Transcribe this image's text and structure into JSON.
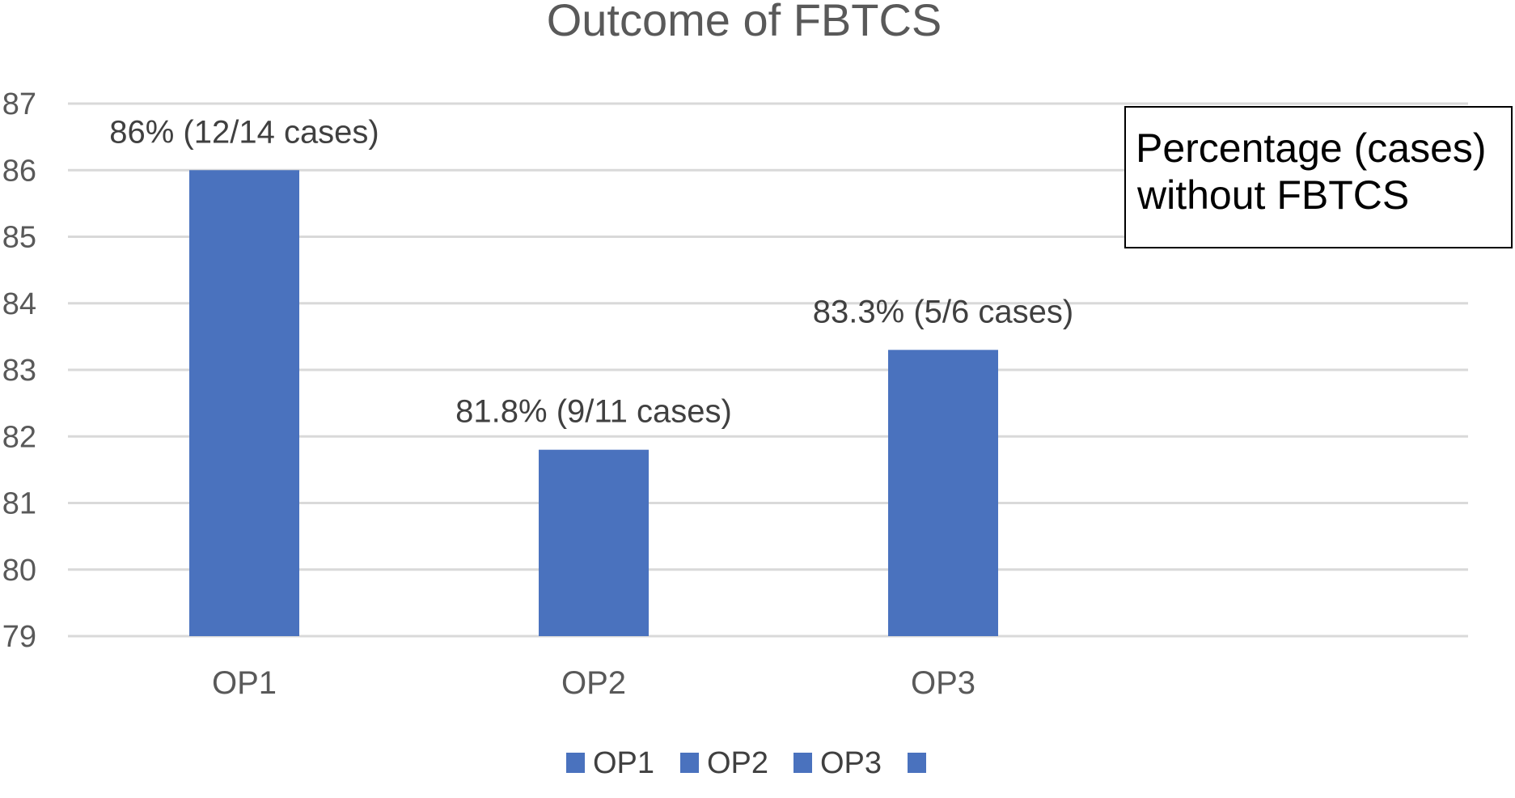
{
  "chart_data": {
    "type": "bar",
    "title": "Outcome of FBTCS",
    "xlabel": "",
    "ylabel": "",
    "categories": [
      "OP1",
      "OP2",
      "OP3"
    ],
    "values": [
      86,
      81.8,
      83.3
    ],
    "data_labels": [
      "86% (12/14 cases)",
      "81.8% (9/11 cases)",
      "83.3% (5/6 cases)"
    ],
    "ylim": [
      79,
      87
    ],
    "yticks": [
      79,
      80,
      81,
      82,
      83,
      84,
      85,
      86,
      87
    ],
    "grid": true,
    "legend": {
      "position": "bottom",
      "entries": [
        "OP1",
        "OP2",
        "OP3",
        ""
      ]
    },
    "annotation": "Percentage (cases) without FBTCS",
    "bar_color": "#4a72be"
  }
}
